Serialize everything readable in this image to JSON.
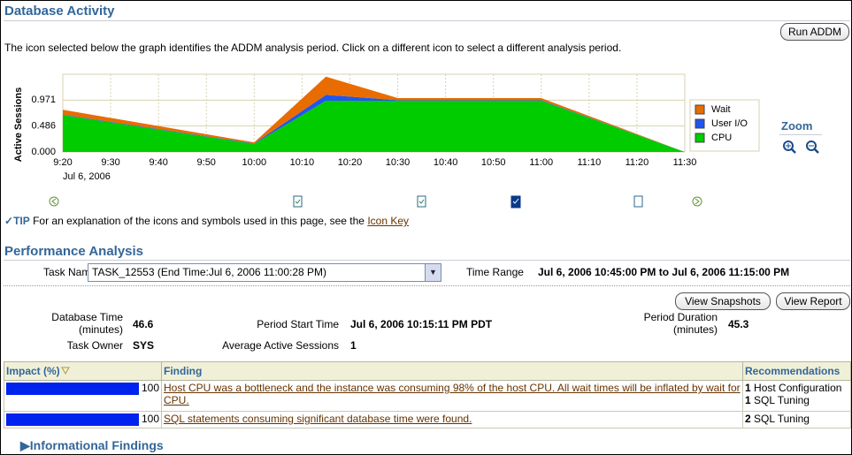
{
  "header": {
    "title": "Database Activity",
    "button": "Run ADDM",
    "instruction": "The icon selected below the graph identifies the ADDM analysis period. Click on a different icon to select a different analysis period."
  },
  "chart_data": {
    "type": "area",
    "stacked": true,
    "y_label": "Active Sessions",
    "x": [
      "9:20",
      "10:00",
      "10:15",
      "10:30",
      "11:00",
      "11:30"
    ],
    "xlim": [
      "9:20",
      "11:30"
    ],
    "xticks": [
      "9:20",
      "9:30",
      "9:40",
      "9:50",
      "10:00",
      "10:10",
      "10:20",
      "10:30",
      "10:40",
      "10:50",
      "11:00",
      "11:10",
      "11:20",
      "11:30"
    ],
    "x_date": "Jul 6, 2006",
    "ylim": [
      0,
      1.456
    ],
    "yticks": [
      {
        "value": 0,
        "label": "0.000"
      },
      {
        "value": 0.486,
        "label": "0.486"
      },
      {
        "value": 0.971,
        "label": "0.971"
      }
    ],
    "grid": true,
    "legend": "right",
    "series": [
      {
        "name": "Wait",
        "color": "#e86c00",
        "values": [
          0.09,
          0.02,
          0.34,
          0.04,
          0.04,
          0
        ]
      },
      {
        "name": "User I/O",
        "color": "#2255ee",
        "values": [
          0.01,
          0.01,
          0.11,
          0.01,
          0.01,
          0
        ]
      },
      {
        "name": "CPU",
        "color": "#00cc00",
        "values": [
          0.69,
          0.15,
          0.96,
          0.96,
          0.96,
          0
        ]
      }
    ]
  },
  "zoom": "Zoom",
  "tip": {
    "label": "TIP",
    "text": "For an explanation of the icons and symbols used in this page, see the",
    "link": "Icon Key"
  },
  "performance": {
    "title": "Performance Analysis",
    "task_name_label": "Task Name",
    "task_name": "TASK_12553 (End Time:Jul 6, 2006 11:00:28 PM)",
    "time_range_label": "Time Range",
    "time_range": "Jul 6, 2006 10:45:00 PM to Jul 6, 2006 11:15:00 PM",
    "buttons": [
      "View Snapshots",
      "View Report"
    ],
    "details": {
      "database_time": {
        "label": "Database Time (minutes)",
        "value": 46.6
      },
      "task_owner": {
        "label": "Task Owner",
        "value": "SYS"
      },
      "period_start": {
        "label": "Period Start Time",
        "value": "Jul 6, 2006 10:15:11 PM PDT"
      },
      "average_active_sessions": {
        "label": "Average Active Sessions",
        "value": 1
      },
      "period_duration": {
        "label": "Period Duration (minutes)",
        "value": 45.3
      }
    }
  },
  "table": {
    "headers": [
      "Impact (%)",
      "Finding",
      "Recommendations"
    ],
    "bar_color": "#0022ee",
    "bar_max": 100,
    "rows": [
      {
        "impact": 100,
        "finding": "Host CPU was a bottleneck and the instance was consuming 98% of the host CPU. All wait times will be inflated by wait for CPU.",
        "recommendations": [
          {
            "count": 1,
            "label": "Host Configuration"
          },
          {
            "count": 1,
            "label": "SQL Tuning"
          }
        ]
      },
      {
        "impact": 100,
        "finding": "SQL statements consuming significant database time were found.",
        "recommendations": [
          {
            "count": 2,
            "label": "SQL Tuning"
          }
        ]
      }
    ]
  },
  "informational": "Informational Findings"
}
